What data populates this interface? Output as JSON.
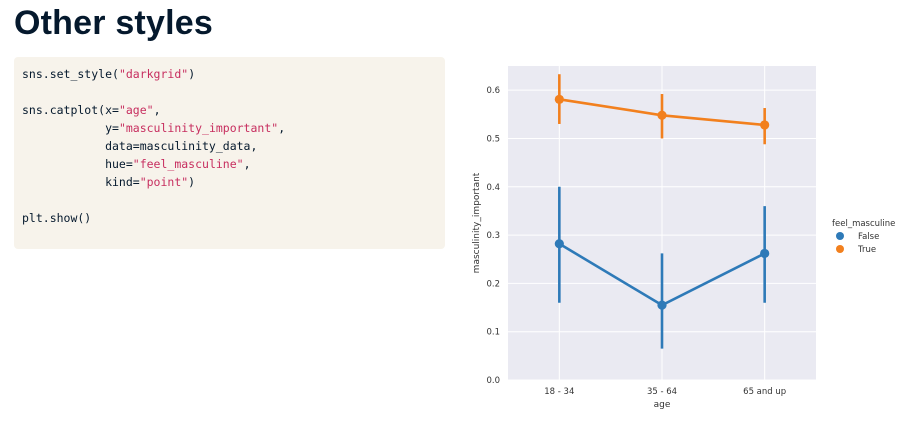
{
  "slide": {
    "title": "Other styles"
  },
  "code": {
    "lines": [
      [
        {
          "t": "sns.set_style("
        },
        {
          "t": "\"darkgrid\"",
          "s": true
        },
        {
          "t": ")"
        }
      ],
      [],
      [
        {
          "t": "sns.catplot(x="
        },
        {
          "t": "\"age\"",
          "s": true
        },
        {
          "t": ","
        }
      ],
      [
        {
          "t": "            y="
        },
        {
          "t": "\"masculinity_important\"",
          "s": true
        },
        {
          "t": ","
        }
      ],
      [
        {
          "t": "            data=masculinity_data,"
        }
      ],
      [
        {
          "t": "            hue="
        },
        {
          "t": "\"feel_masculine\"",
          "s": true
        },
        {
          "t": ","
        }
      ],
      [
        {
          "t": "            kind="
        },
        {
          "t": "\"point\"",
          "s": true
        },
        {
          "t": ")"
        }
      ],
      [],
      [
        {
          "t": "plt.show()"
        }
      ]
    ]
  },
  "chart_data": {
    "type": "line",
    "style": "darkgrid",
    "categories": [
      "18 - 34",
      "35 - 64",
      "65 and up"
    ],
    "xlabel": "age",
    "ylabel": "masculinity_important",
    "ylim": [
      0.0,
      0.65
    ],
    "yticks": [
      "0.0",
      "0.1",
      "0.2",
      "0.3",
      "0.4",
      "0.5",
      "0.6"
    ],
    "legend_title": "feel_masculine",
    "legend_position": "right",
    "series": [
      {
        "name": "False",
        "color": "#2e7ab8",
        "values": [
          0.282,
          0.155,
          0.262
        ],
        "ci_low": [
          0.16,
          0.065,
          0.16
        ],
        "ci_high": [
          0.4,
          0.262,
          0.36
        ]
      },
      {
        "name": "True",
        "color": "#f2801e",
        "values": [
          0.581,
          0.548,
          0.528
        ],
        "ci_low": [
          0.53,
          0.5,
          0.488
        ],
        "ci_high": [
          0.633,
          0.592,
          0.563
        ]
      }
    ]
  }
}
